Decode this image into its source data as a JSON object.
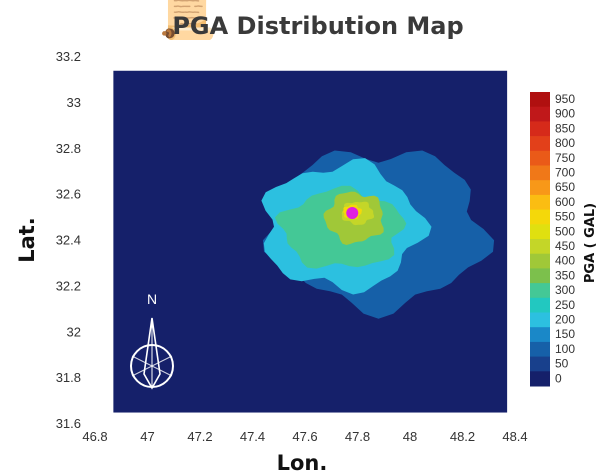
{
  "chart_data": {
    "type": "heatmap",
    "title": "PGA Distribution Map",
    "xlabel": "Lon.",
    "ylabel": "Lat.",
    "xlim": [
      46.8,
      48.4
    ],
    "ylim": [
      31.6,
      33.2
    ],
    "x_ticks": [
      46.8,
      47,
      47.2,
      47.4,
      47.6,
      47.8,
      48,
      48.2,
      48.4
    ],
    "y_ticks": [
      31.6,
      31.8,
      32,
      32.2,
      32.4,
      32.6,
      32.8,
      33,
      33.2
    ],
    "x_tick_labels": [
      "46.8",
      "47",
      "47.2",
      "47.4",
      "47.6",
      "47.8",
      "48",
      "48.2",
      "48.4"
    ],
    "y_tick_labels": [
      "31.6",
      "31.8",
      "32",
      "32.2",
      "32.4",
      "32.6",
      "32.8",
      "33",
      "33.2"
    ],
    "data_extent": {
      "lon": [
        46.87,
        48.37
      ],
      "lat": [
        31.65,
        33.14
      ]
    },
    "background_value": 0,
    "zones": [
      {
        "pga": 100,
        "center": [
          47.88,
          32.45
        ],
        "radius_lon": 0.4,
        "radius_lat": 0.34
      },
      {
        "pga": 200,
        "center": [
          47.74,
          32.46
        ],
        "radius_lon": 0.3,
        "radius_lat": 0.27
      },
      {
        "pga": 300,
        "center": [
          47.74,
          32.45
        ],
        "radius_lon": 0.23,
        "radius_lat": 0.17
      },
      {
        "pga": 400,
        "center": [
          47.79,
          32.5
        ],
        "radius_lon": 0.11,
        "radius_lat": 0.11
      },
      {
        "pga": 450,
        "center": [
          47.8,
          32.52
        ],
        "radius_lon": 0.06,
        "radius_lat": 0.05
      },
      {
        "pga": 550,
        "center": [
          47.78,
          32.525
        ],
        "radius_lon": 0.035,
        "radius_lat": 0.03
      }
    ],
    "epicenter": {
      "lon": 47.78,
      "lat": 32.52,
      "color": "#e020e0"
    },
    "colorbar": {
      "title": "PGA ( GAL)",
      "labels": [
        "950",
        "900",
        "850",
        "800",
        "750",
        "700",
        "650",
        "600",
        "550",
        "500",
        "450",
        "400",
        "350",
        "300",
        "250",
        "200",
        "150",
        "100",
        "50",
        "0"
      ],
      "colors": [
        "#b01010",
        "#c0181a",
        "#d62a1a",
        "#e2401a",
        "#ea5a18",
        "#f07818",
        "#f89818",
        "#fbbd12",
        "#f4d80a",
        "#e0e010",
        "#c4d628",
        "#a0c838",
        "#7cc04c",
        "#44c896",
        "#22c8c0",
        "#2cc0e0",
        "#1a88c8",
        "#1660a8",
        "#18408c",
        "#15206a"
      ]
    },
    "north_arrow": "N"
  }
}
